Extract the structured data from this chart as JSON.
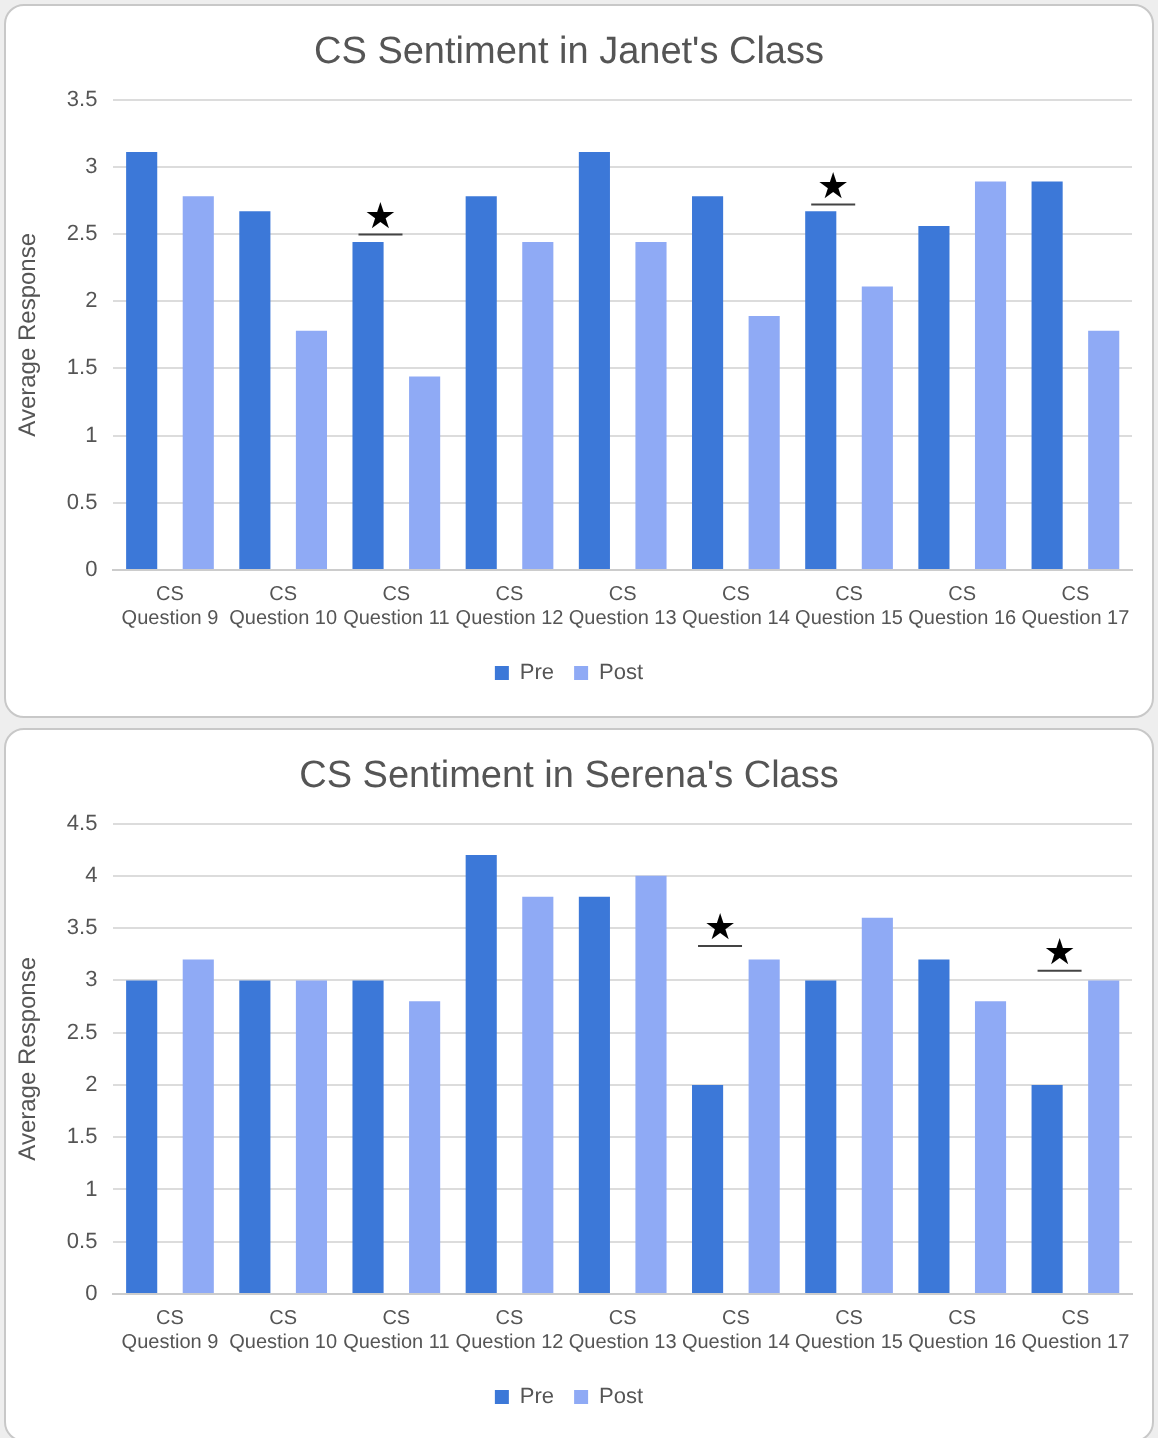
{
  "chart_data": [
    {
      "type": "bar",
      "title": "CS Sentiment in Janet's Class",
      "ylabel": "Average Response",
      "categories": [
        "CS Question 9",
        "CS Question 10",
        "CS Question 11",
        "CS Question 12",
        "CS Question 13",
        "CS Question 14",
        "CS Question 15",
        "CS Question 16",
        "CS Question 17"
      ],
      "series": [
        {
          "name": "Pre",
          "color": "#3c78d8",
          "values": [
            3.11,
            2.67,
            2.44,
            2.78,
            3.11,
            2.78,
            2.67,
            2.56,
            2.89
          ]
        },
        {
          "name": "Post",
          "color": "#8faaf5",
          "values": [
            2.78,
            1.78,
            1.44,
            2.44,
            2.44,
            1.89,
            2.11,
            2.89,
            1.78
          ]
        }
      ],
      "ylim": [
        0,
        3.5
      ],
      "yticks": [
        0,
        0.5,
        1,
        1.5,
        2,
        2.5,
        3,
        3.5
      ],
      "grid": "y",
      "legend": "bottom",
      "annotations": [
        "★",
        "★"
      ]
    },
    {
      "type": "bar",
      "title": "CS Sentiment in Serena's Class",
      "ylabel": "Average Response",
      "categories": [
        "CS Question 9",
        "CS Question 10",
        "CS Question 11",
        "CS Question 12",
        "CS Question 13",
        "CS Question 14",
        "CS Question 15",
        "CS Question 16",
        "CS Question 17"
      ],
      "series": [
        {
          "name": "Pre",
          "color": "#3c78d8",
          "values": [
            3,
            3,
            3,
            4.2,
            3.8,
            2,
            3,
            3.2,
            2
          ]
        },
        {
          "name": "Post",
          "color": "#8faaf5",
          "values": [
            3.2,
            3,
            2.8,
            3.8,
            4,
            3.2,
            3.6,
            2.8,
            3
          ]
        }
      ],
      "ylim": [
        0,
        4.5
      ],
      "yticks": [
        0,
        0.5,
        1,
        1.5,
        2,
        2.5,
        3,
        3.5,
        4,
        4.5
      ],
      "grid": "y",
      "legend": "bottom",
      "annotations": [
        "★",
        "★"
      ]
    }
  ]
}
